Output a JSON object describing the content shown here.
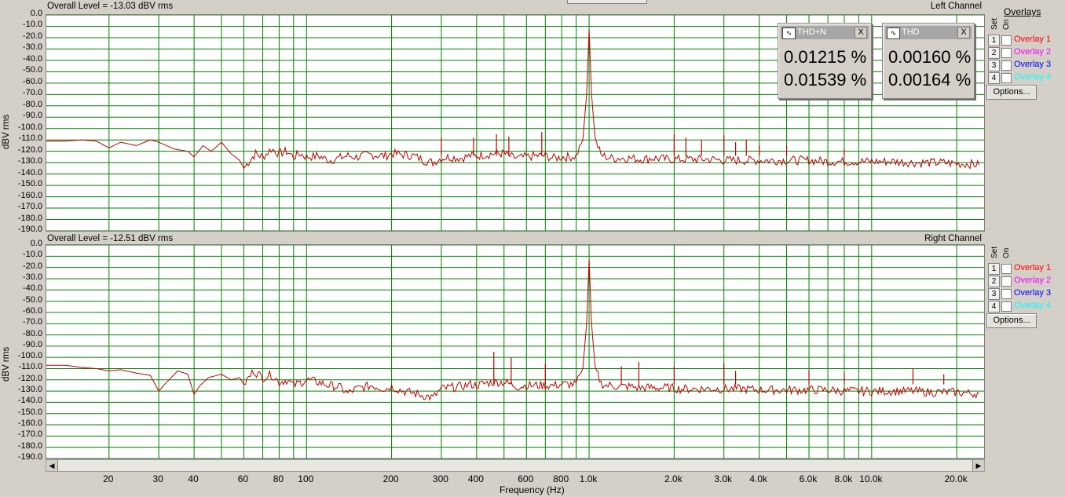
{
  "xaxis": {
    "label": "Frequency (Hz)",
    "ticks": [
      {
        "v": 20,
        "t": "20"
      },
      {
        "v": 30,
        "t": "30"
      },
      {
        "v": 40,
        "t": "40"
      },
      {
        "v": 60,
        "t": "60"
      },
      {
        "v": 80,
        "t": "80"
      },
      {
        "v": 100,
        "t": "100"
      },
      {
        "v": 200,
        "t": "200"
      },
      {
        "v": 300,
        "t": "300"
      },
      {
        "v": 400,
        "t": "400"
      },
      {
        "v": 600,
        "t": "600"
      },
      {
        "v": 800,
        "t": "800"
      },
      {
        "v": 1000,
        "t": "1.0k"
      },
      {
        "v": 2000,
        "t": "2.0k"
      },
      {
        "v": 3000,
        "t": "3.0k"
      },
      {
        "v": 4000,
        "t": "4.0k"
      },
      {
        "v": 6000,
        "t": "6.0k"
      },
      {
        "v": 8000,
        "t": "8.0k"
      },
      {
        "v": 10000,
        "t": "10.0k"
      },
      {
        "v": 20000,
        "t": "20.0k"
      }
    ]
  },
  "yaxis": {
    "label": "dBV rms",
    "ticks": [
      "0.0",
      "-10.0",
      "-20.0",
      "-30.0",
      "-40.0",
      "-50.0",
      "-60.0",
      "-70.0",
      "-80.0",
      "-90.0",
      "-100.0",
      "-110.0",
      "-120.0",
      "-130.0",
      "-140.0",
      "-150.0",
      "-160.0",
      "-170.0",
      "-180.0",
      "-190.0"
    ]
  },
  "panes": [
    {
      "overall": "Overall Level = -13.03 dBV rms",
      "channel": "Left Channel"
    },
    {
      "overall": "Overall Level = -12.51 dBV rms",
      "channel": "Right Channel"
    }
  ],
  "meters": [
    {
      "title": "THD+N",
      "values": [
        "0.01215 %",
        "0.01539 %"
      ],
      "close": "X"
    },
    {
      "title": "THD",
      "values": [
        "0.00160 %",
        "0.00164 %"
      ],
      "close": "X"
    }
  ],
  "overlays": {
    "header": "Overlays",
    "set_label": "Set",
    "on_label": "On",
    "options_label": "Options...",
    "items": [
      {
        "num": "1",
        "label": "Overlay 1",
        "color": "#ff0000"
      },
      {
        "num": "2",
        "label": "Overlay 2",
        "color": "#ff00ff"
      },
      {
        "num": "3",
        "label": "Overlay 3",
        "color": "#0000ff"
      },
      {
        "num": "4",
        "label": "Overlay 4",
        "color": "#00ffff"
      }
    ]
  },
  "chart_data": [
    {
      "type": "line",
      "title": "Overall Level = -13.03 dBV rms",
      "channel": "Left Channel",
      "xlabel": "Frequency (Hz)",
      "ylabel": "dBV rms",
      "xlim": [
        12,
        25000
      ],
      "ylim": [
        -190,
        0
      ],
      "xscale": "log",
      "grid": true,
      "line_color": "#c00000",
      "grid_color": "#008000",
      "series": [
        {
          "points": [
            [
              12,
              -111
            ],
            [
              14,
              -111
            ],
            [
              16,
              -110
            ],
            [
              18,
              -111
            ],
            [
              20,
              -117
            ],
            [
              22,
              -112
            ],
            [
              25,
              -115
            ],
            [
              28,
              -110
            ],
            [
              30,
              -112
            ],
            [
              34,
              -118
            ],
            [
              38,
              -120
            ],
            [
              40,
              -125
            ],
            [
              43,
              -115
            ],
            [
              46,
              -120
            ],
            [
              50,
              -112
            ],
            [
              54,
              -122
            ],
            [
              58,
              -128
            ],
            [
              60,
              -135
            ],
            [
              63,
              -128
            ],
            [
              66,
              -122
            ],
            [
              70,
              -125
            ],
            [
              75,
              -118
            ],
            [
              80,
              -122
            ],
            [
              85,
              -120
            ],
            [
              90,
              -125
            ],
            [
              95,
              -122
            ],
            [
              100,
              -125
            ],
            [
              110,
              -124
            ],
            [
              120,
              -128
            ],
            [
              130,
              -126
            ],
            [
              140,
              -124
            ],
            [
              150,
              -125
            ],
            [
              170,
              -123
            ],
            [
              190,
              -124
            ],
            [
              200,
              -122
            ],
            [
              220,
              -123
            ],
            [
              240,
              -124
            ],
            [
              260,
              -128
            ],
            [
              280,
              -130
            ],
            [
              300,
              -126
            ],
            [
              320,
              -125
            ],
            [
              350,
              -126
            ],
            [
              380,
              -124
            ],
            [
              400,
              -124
            ],
            [
              430,
              -123
            ],
            [
              460,
              -122
            ],
            [
              500,
              -122
            ],
            [
              530,
              -125
            ],
            [
              560,
              -126
            ],
            [
              600,
              -125
            ],
            [
              650,
              -124
            ],
            [
              700,
              -124
            ],
            [
              750,
              -126
            ],
            [
              800,
              -125
            ],
            [
              850,
              -125
            ],
            [
              900,
              -124
            ],
            [
              950,
              -110
            ],
            [
              980,
              -70
            ],
            [
              1000,
              -13
            ],
            [
              1020,
              -70
            ],
            [
              1050,
              -108
            ],
            [
              1100,
              -123
            ],
            [
              1150,
              -125
            ],
            [
              1200,
              -126
            ],
            [
              1300,
              -126
            ],
            [
              1400,
              -126
            ],
            [
              1500,
              -127
            ],
            [
              1700,
              -126
            ],
            [
              1900,
              -127
            ],
            [
              2100,
              -127
            ],
            [
              2400,
              -127
            ],
            [
              2700,
              -127
            ],
            [
              3000,
              -128
            ],
            [
              3500,
              -128
            ],
            [
              4000,
              -128
            ],
            [
              4500,
              -128
            ],
            [
              5000,
              -128
            ],
            [
              6000,
              -128
            ],
            [
              7000,
              -129
            ],
            [
              8000,
              -129
            ],
            [
              9000,
              -129
            ],
            [
              10000,
              -129
            ],
            [
              12000,
              -129
            ],
            [
              14000,
              -130
            ],
            [
              16000,
              -130
            ],
            [
              18000,
              -130
            ],
            [
              20000,
              -131
            ],
            [
              22000,
              -131
            ],
            [
              24000,
              -132
            ]
          ]
        }
      ],
      "spikes": [
        [
          300,
          -108
        ],
        [
          390,
          -108
        ],
        [
          470,
          -105
        ],
        [
          520,
          -107
        ],
        [
          680,
          -103
        ],
        [
          2000,
          -105
        ],
        [
          2200,
          -108
        ],
        [
          2500,
          -110
        ],
        [
          3000,
          -106
        ],
        [
          3300,
          -112
        ],
        [
          3600,
          -110
        ],
        [
          4000,
          -115
        ],
        [
          5000,
          -115
        ],
        [
          8000,
          -118
        ]
      ]
    },
    {
      "type": "line",
      "title": "Overall Level = -12.51 dBV rms",
      "channel": "Right Channel",
      "xlabel": "Frequency (Hz)",
      "ylabel": "dBV rms",
      "xlim": [
        12,
        25000
      ],
      "ylim": [
        -190,
        0
      ],
      "xscale": "log",
      "grid": true,
      "line_color": "#c00000",
      "grid_color": "#008000",
      "series": [
        {
          "points": [
            [
              12,
              -107
            ],
            [
              14,
              -107
            ],
            [
              16,
              -109
            ],
            [
              18,
              -110
            ],
            [
              20,
              -112
            ],
            [
              22,
              -111
            ],
            [
              25,
              -114
            ],
            [
              28,
              -116
            ],
            [
              30,
              -130
            ],
            [
              32,
              -122
            ],
            [
              35,
              -112
            ],
            [
              38,
              -115
            ],
            [
              40,
              -133
            ],
            [
              42,
              -125
            ],
            [
              45,
              -118
            ],
            [
              50,
              -115
            ],
            [
              54,
              -120
            ],
            [
              58,
              -118
            ],
            [
              60,
              -124
            ],
            [
              65,
              -112
            ],
            [
              70,
              -118
            ],
            [
              75,
              -115
            ],
            [
              80,
              -122
            ],
            [
              85,
              -120
            ],
            [
              90,
              -125
            ],
            [
              100,
              -120
            ],
            [
              110,
              -122
            ],
            [
              120,
              -125
            ],
            [
              130,
              -126
            ],
            [
              140,
              -132
            ],
            [
              150,
              -128
            ],
            [
              170,
              -125
            ],
            [
              190,
              -128
            ],
            [
              200,
              -126
            ],
            [
              220,
              -130
            ],
            [
              240,
              -132
            ],
            [
              260,
              -134
            ],
            [
              280,
              -136
            ],
            [
              300,
              -128
            ],
            [
              320,
              -127
            ],
            [
              350,
              -126
            ],
            [
              380,
              -124
            ],
            [
              400,
              -125
            ],
            [
              430,
              -123
            ],
            [
              460,
              -122
            ],
            [
              500,
              -122
            ],
            [
              530,
              -124
            ],
            [
              560,
              -126
            ],
            [
              600,
              -125
            ],
            [
              650,
              -125
            ],
            [
              700,
              -125
            ],
            [
              750,
              -125
            ],
            [
              800,
              -124
            ],
            [
              850,
              -124
            ],
            [
              900,
              -124
            ],
            [
              950,
              -110
            ],
            [
              980,
              -70
            ],
            [
              1000,
              -13
            ],
            [
              1020,
              -70
            ],
            [
              1050,
              -108
            ],
            [
              1100,
              -123
            ],
            [
              1150,
              -125
            ],
            [
              1200,
              -125
            ],
            [
              1300,
              -126
            ],
            [
              1400,
              -126
            ],
            [
              1500,
              -127
            ],
            [
              1700,
              -127
            ],
            [
              1900,
              -127
            ],
            [
              2100,
              -128
            ],
            [
              2400,
              -128
            ],
            [
              2700,
              -128
            ],
            [
              3000,
              -128
            ],
            [
              3500,
              -128
            ],
            [
              4000,
              -129
            ],
            [
              4500,
              -129
            ],
            [
              5000,
              -129
            ],
            [
              6000,
              -129
            ],
            [
              7000,
              -129
            ],
            [
              8000,
              -130
            ],
            [
              9000,
              -130
            ],
            [
              10000,
              -130
            ],
            [
              12000,
              -130
            ],
            [
              14000,
              -130
            ],
            [
              16000,
              -131
            ],
            [
              18000,
              -131
            ],
            [
              20000,
              -131
            ],
            [
              22000,
              -132
            ],
            [
              24000,
              -132
            ]
          ]
        }
      ],
      "spikes": [
        [
          460,
          -95
        ],
        [
          530,
          -100
        ],
        [
          700,
          -106
        ],
        [
          1300,
          -108
        ],
        [
          1500,
          -104
        ],
        [
          2000,
          -108
        ],
        [
          3000,
          -105
        ],
        [
          3300,
          -112
        ],
        [
          6000,
          -112
        ],
        [
          8000,
          -114
        ],
        [
          14000,
          -110
        ],
        [
          18000,
          -115
        ]
      ]
    }
  ]
}
